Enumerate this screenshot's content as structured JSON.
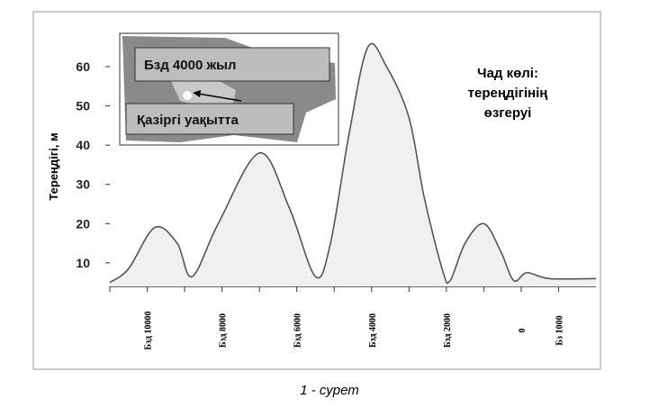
{
  "chart_data": {
    "type": "area",
    "y_label": "Тереңдігі, м",
    "annotation": [
      "Чад көлі:",
      "тереңдігінің",
      "өзгеруі"
    ],
    "inset_labels": [
      "Бзд 4000 жыл",
      "Қазіргі уақытта"
    ],
    "caption": "1 - сурет",
    "x": [
      -11000,
      -10500,
      -9800,
      -9200,
      -8800,
      -8100,
      -7000,
      -6200,
      -5500,
      -5100,
      -4600,
      -4100,
      -3600,
      -3000,
      -2600,
      -2100,
      -1900,
      -1500,
      -1000,
      -550,
      -200,
      150,
      750,
      2000
    ],
    "values": [
      5,
      8.5,
      19,
      15,
      6.5,
      20,
      38,
      24,
      6.5,
      15,
      43,
      65,
      60,
      47,
      27,
      8,
      5.5,
      15,
      20,
      13,
      5.5,
      7.5,
      6,
      6
    ],
    "color": "#f0f0f0",
    "line_color": "#555555",
    "xlim": [
      -11000,
      2000
    ],
    "xticks": [
      {
        "value": -10000,
        "label": "Бзд 10000"
      },
      {
        "value": -8000,
        "label": "Бзд 8000"
      },
      {
        "value": -6000,
        "label": "Бзд 6000"
      },
      {
        "value": -4000,
        "label": "Бзд 4000"
      },
      {
        "value": -2000,
        "label": "Бзд 2000"
      },
      0,
      {
        "value": 1000,
        "label": "Бз 1000"
      }
    ],
    "xminor_ticks": [
      -11000,
      -9000,
      -7000,
      -5000,
      -3000,
      -1000
    ],
    "ylim": [
      4,
      74
    ],
    "yticks": [
      10,
      20,
      30,
      40,
      50,
      60
    ]
  }
}
